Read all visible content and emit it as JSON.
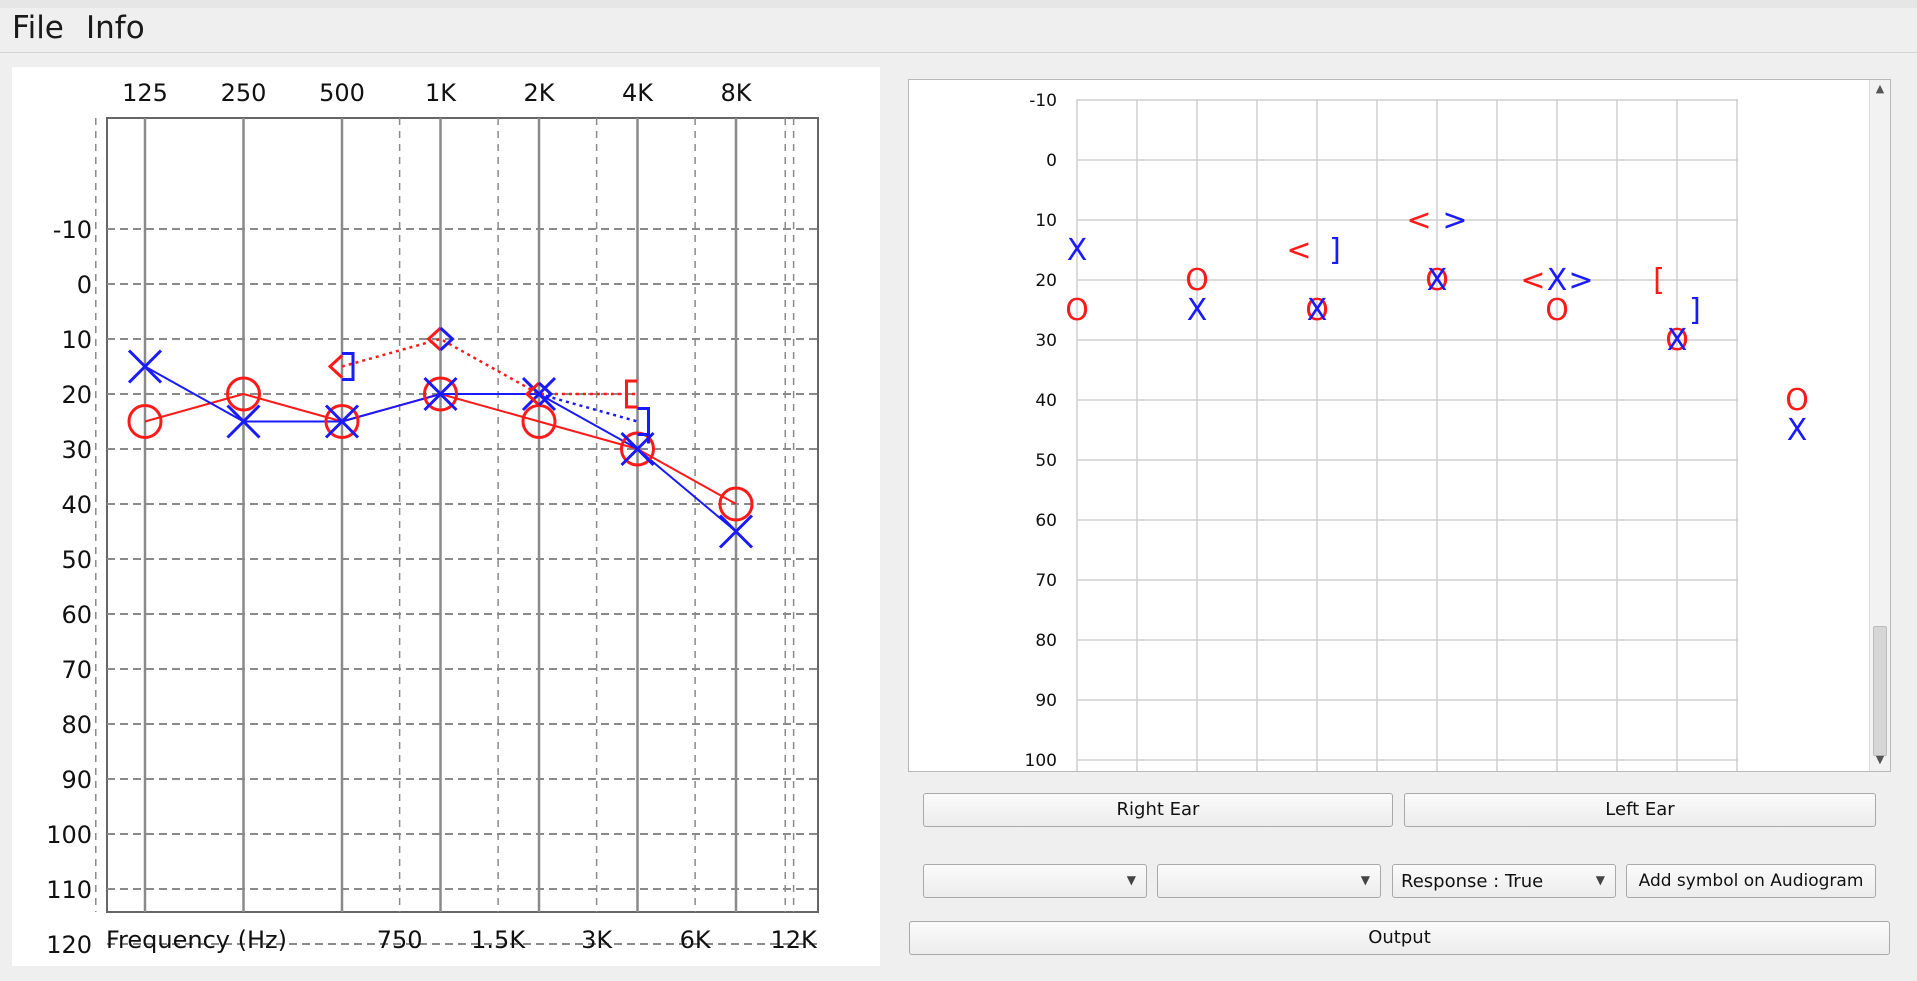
{
  "menu": {
    "file": "File",
    "info": "Info"
  },
  "left_chart": {
    "top_freq_labels": [
      "125",
      "250",
      "500",
      "1K",
      "2K",
      "4K",
      "8K"
    ],
    "bottom_freq_labels": [
      "750",
      "1.5K",
      "3K",
      "6K",
      "12K"
    ],
    "xlabel": "Frequency (Hz)",
    "y_labels": [
      "-10",
      "0",
      "10",
      "20",
      "30",
      "40",
      "50",
      "60",
      "70",
      "80",
      "90",
      "100",
      "110",
      "120"
    ]
  },
  "right_chart": {
    "y_labels": [
      "-10",
      "0",
      "10",
      "20",
      "30",
      "40",
      "50",
      "60",
      "70",
      "80",
      "90",
      "100"
    ]
  },
  "chart_data": {
    "type": "scatter",
    "x_scale": "log2 (octave columns)",
    "y_reversed": true,
    "ylim": [
      -10,
      120
    ],
    "grid": true,
    "series": [
      {
        "name": "Right Ear air (O)",
        "color": "#ff1a1a",
        "x": [
          125,
          250,
          500,
          1000,
          2000,
          4000,
          8000
        ],
        "y": [
          25,
          20,
          25,
          20,
          25,
          30,
          40
        ]
      },
      {
        "name": "Left Ear air (X)",
        "color": "#1a1aff",
        "x": [
          125,
          250,
          500,
          1000,
          2000,
          4000,
          8000
        ],
        "y": [
          15,
          25,
          25,
          20,
          20,
          30,
          45
        ]
      },
      {
        "name": "Right bone unmasked (<)",
        "color": "#ff1a1a",
        "x": [
          500,
          1000,
          2000
        ],
        "y": [
          15,
          10,
          20
        ]
      },
      {
        "name": "Left bone unmasked (>)",
        "color": "#1a1aff",
        "x": [
          1000,
          2000
        ],
        "y": [
          10,
          20
        ]
      },
      {
        "name": "Right bone masked ([)",
        "color": "#ff1a1a",
        "x": [
          4000
        ],
        "y": [
          20
        ]
      },
      {
        "name": "Left bone masked (])",
        "color": "#1a1aff",
        "x": [
          500,
          4000
        ],
        "y": [
          15,
          25
        ]
      }
    ]
  },
  "buttons": {
    "right_ear": "Right Ear",
    "left_ear": "Left Ear",
    "combo1": "",
    "combo2": "",
    "response": "Response : True",
    "add_symbol": "Add symbol on Audiogram",
    "output": "Output"
  }
}
